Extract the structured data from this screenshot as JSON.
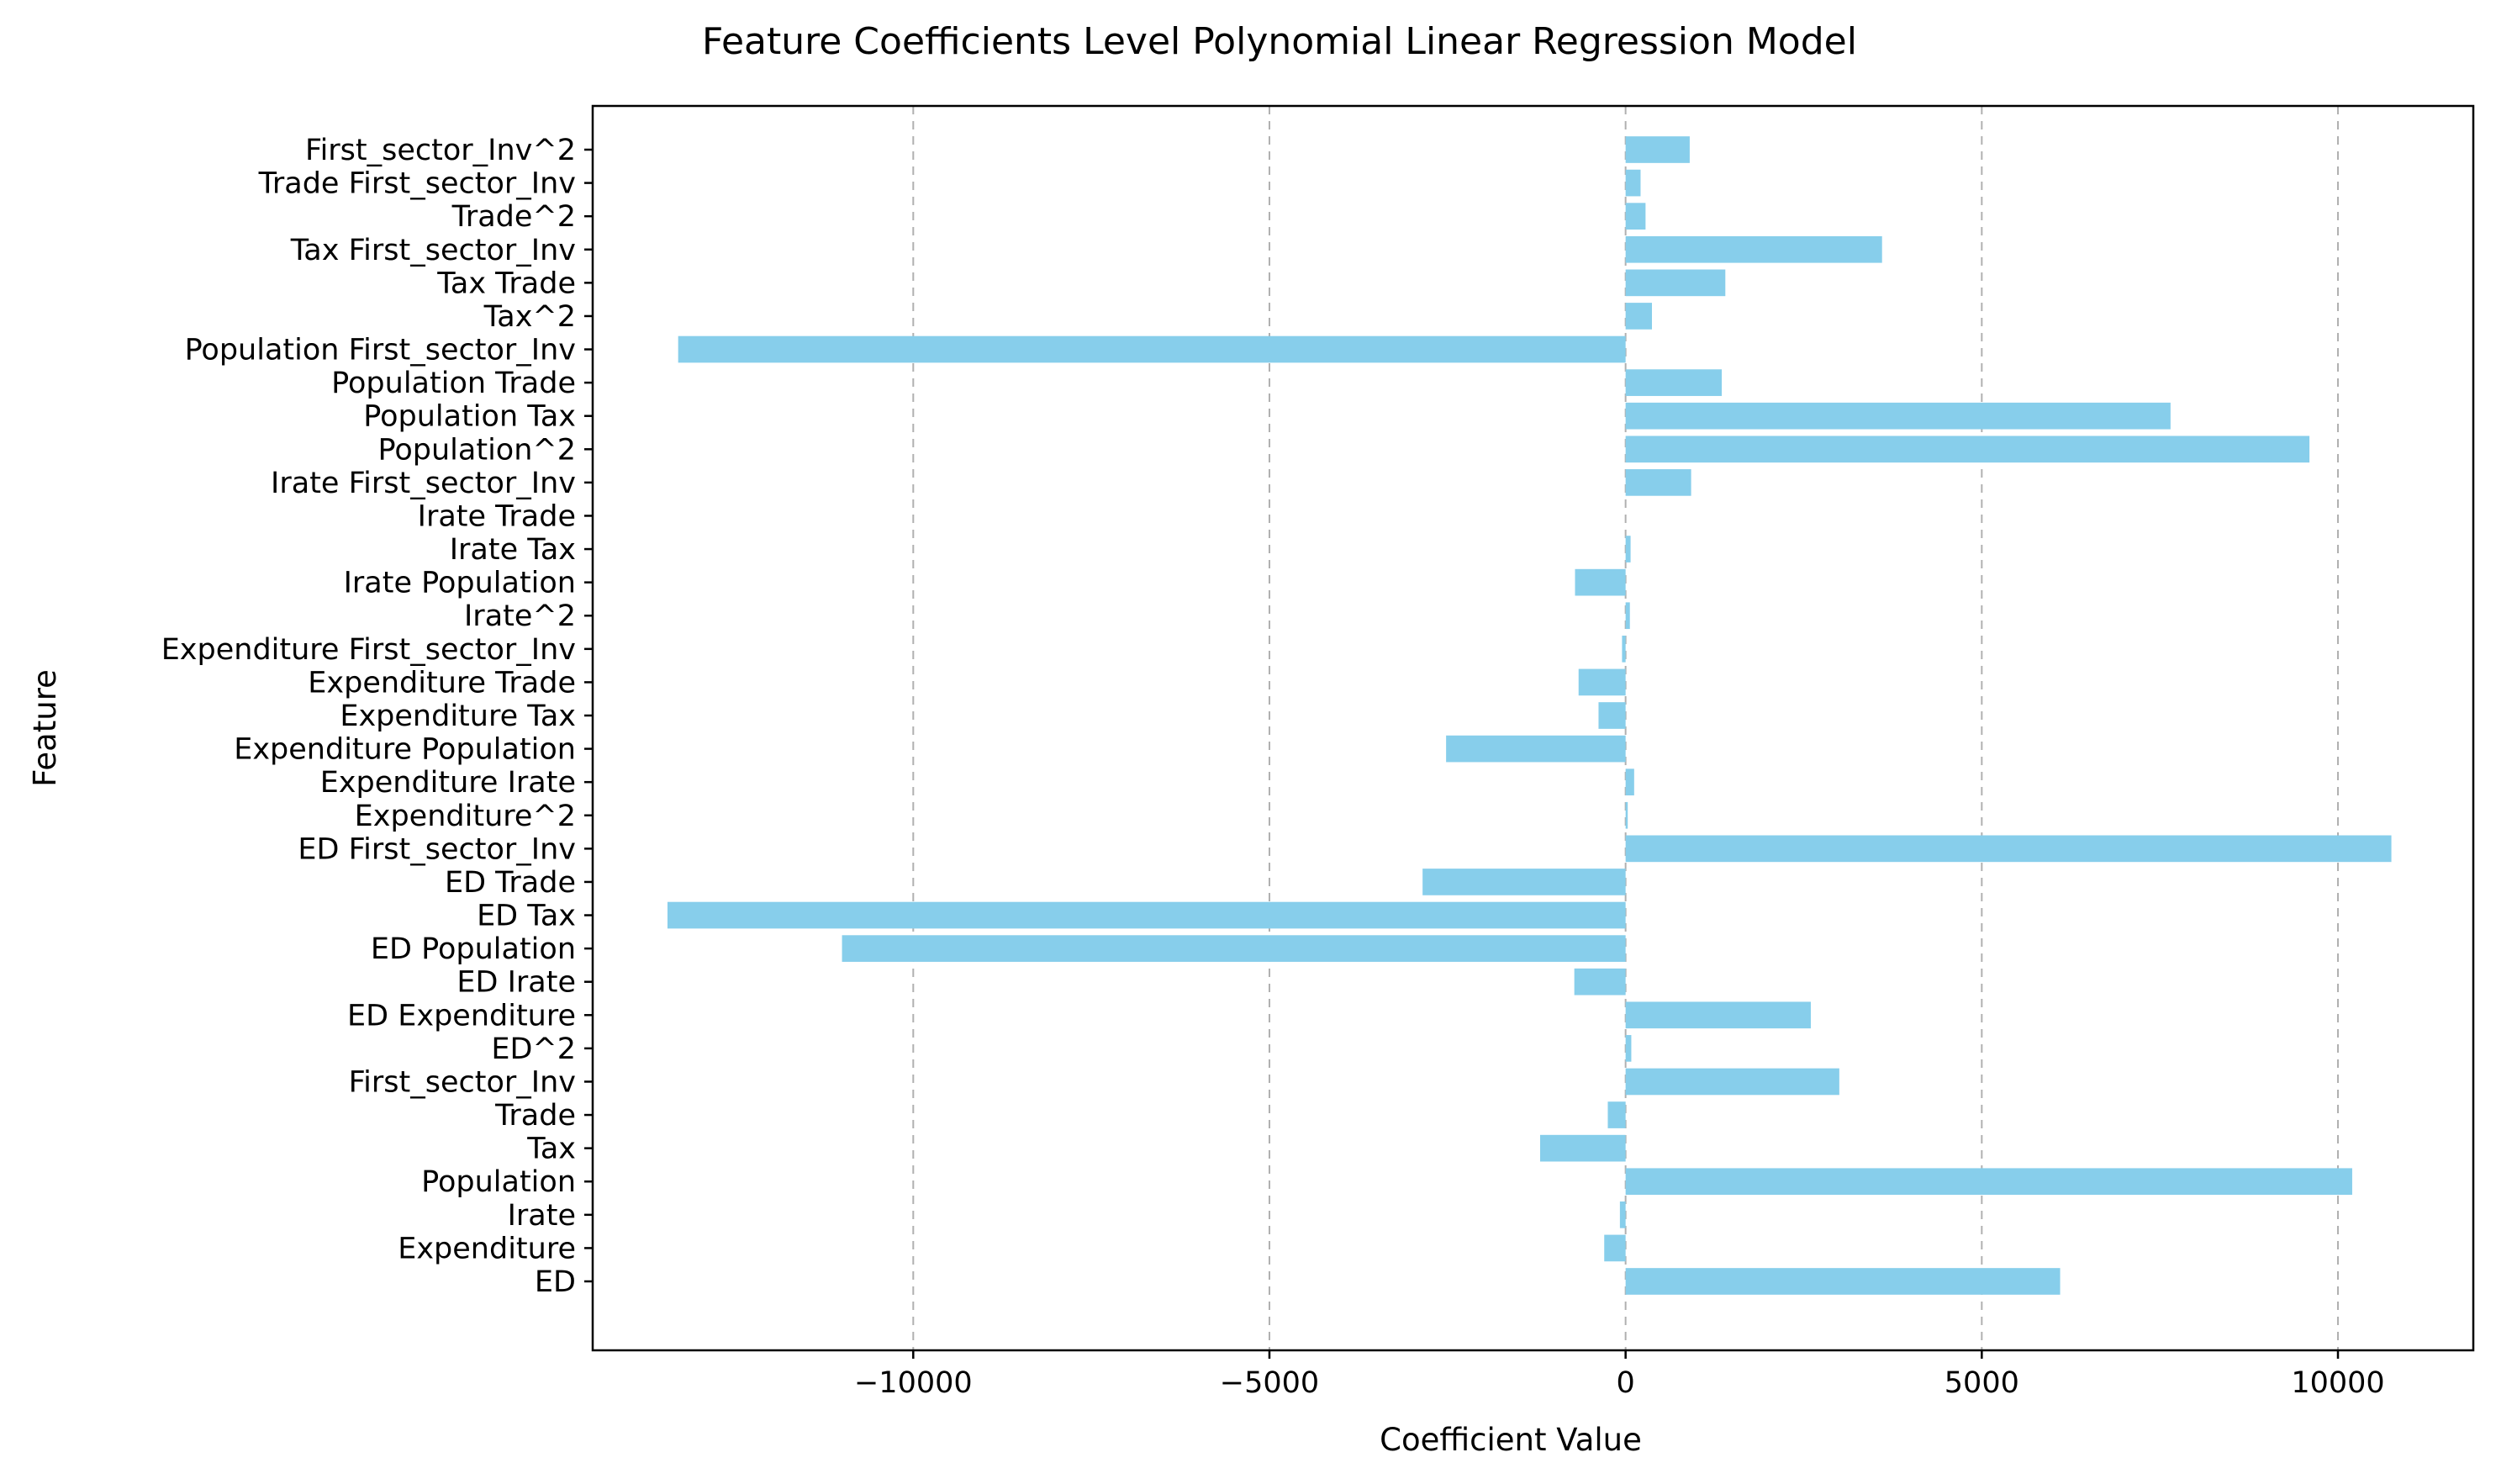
{
  "chart_data": {
    "type": "bar",
    "orientation": "horizontal",
    "title": "Feature Coefficients Level Polynomial Linear Regression Model",
    "xlabel": "Coefficient Value",
    "ylabel": "Feature",
    "xlim": [
      -14500,
      11900
    ],
    "xticks": [
      -10000,
      -5000,
      0,
      5000,
      10000
    ],
    "xtick_labels": [
      "−10000",
      "−5000",
      "0",
      "5000",
      "10000"
    ],
    "grid": "x, dashed",
    "bar_color": "#87ceeb",
    "categories": [
      "ED",
      "Expenditure",
      "Irate",
      "Population",
      "Tax",
      "Trade",
      "First_sector_Inv",
      "ED^2",
      "ED Expenditure",
      "ED Irate",
      "ED Population",
      "ED Tax",
      "ED Trade",
      "ED First_sector_Inv",
      "Expenditure^2",
      "Expenditure Irate",
      "Expenditure Population",
      "Expenditure Tax",
      "Expenditure Trade",
      "Expenditure First_sector_Inv",
      "Irate^2",
      "Irate Population",
      "Irate Tax",
      "Irate Trade",
      "Irate First_sector_Inv",
      "Population^2",
      "Population Tax",
      "Population Trade",
      "Population First_sector_Inv",
      "Tax^2",
      "Tax Trade",
      "Tax First_sector_Inv",
      "Trade^2",
      "Trade First_sector_Inv",
      "First_sector_Inv^2"
    ],
    "values": [
      6100,
      -300,
      -80,
      10200,
      -1200,
      -250,
      3000,
      80,
      2600,
      -720,
      -11000,
      -13450,
      -2850,
      10750,
      30,
      120,
      -2520,
      -380,
      -660,
      -50,
      60,
      -710,
      70,
      0,
      920,
      9600,
      7650,
      1350,
      -13300,
      370,
      1400,
      3600,
      280,
      210,
      900
    ]
  }
}
